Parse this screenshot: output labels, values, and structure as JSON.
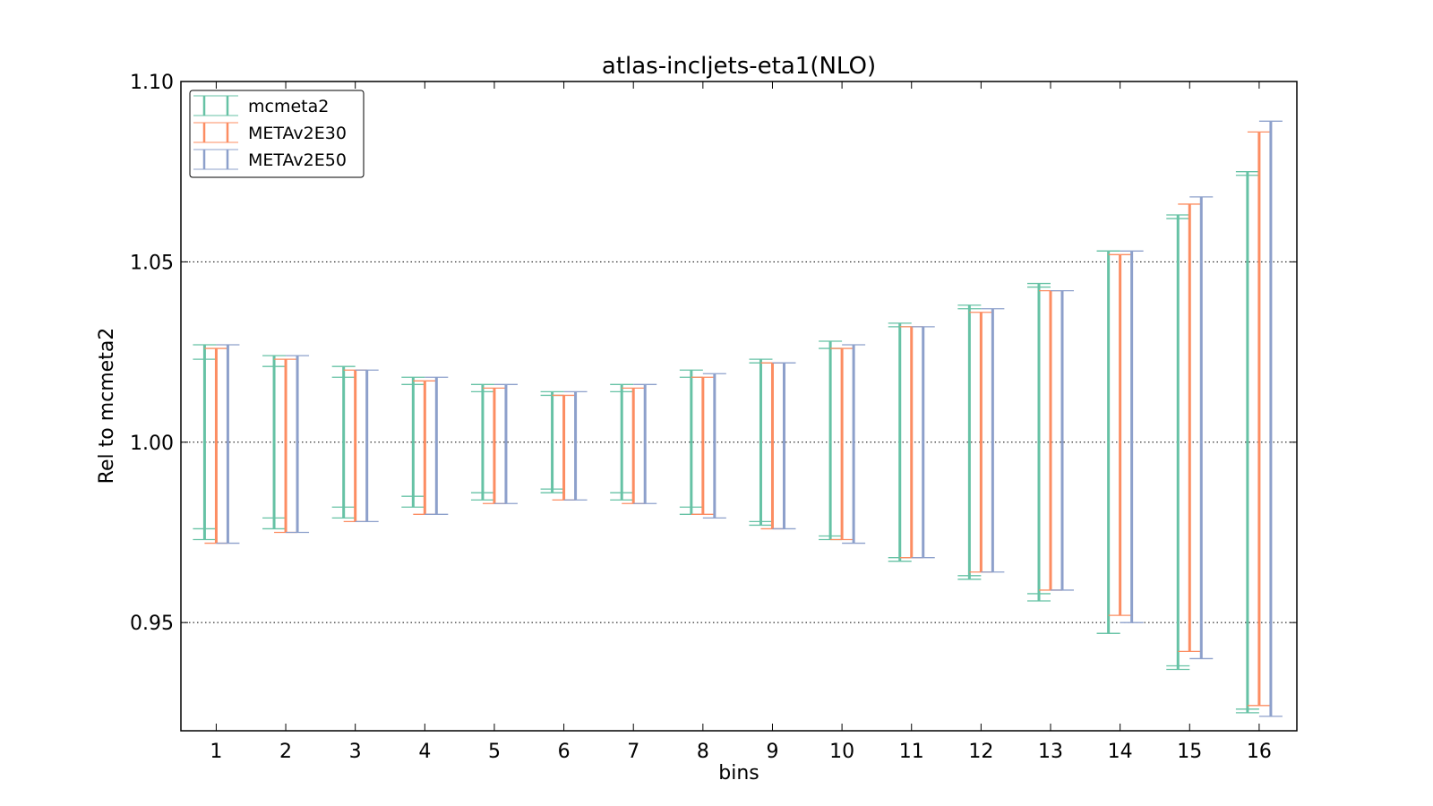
{
  "chart_data": {
    "type": "errorbar",
    "title": "atlas-incljets-eta1(NLO)",
    "xlabel": "bins",
    "ylabel": "Rel to mcmeta2",
    "ylim": [
      0.92,
      1.1
    ],
    "yticks": [
      "0.95",
      "1.00",
      "1.05",
      "1.10"
    ],
    "ytick_values": [
      0.95,
      1.0,
      1.05,
      1.1
    ],
    "grid": "horizontal dotted",
    "legend_position": "top-left",
    "categories": [
      "1",
      "2",
      "3",
      "4",
      "5",
      "6",
      "7",
      "8",
      "9",
      "10",
      "11",
      "12",
      "13",
      "14",
      "15",
      "16"
    ],
    "series": [
      {
        "name": "mcmeta2",
        "color": "#66c2a5",
        "upper": [
          1.027,
          1.024,
          1.021,
          1.018,
          1.016,
          1.014,
          1.016,
          1.02,
          1.023,
          1.028,
          1.033,
          1.038,
          1.044,
          1.053,
          1.063,
          1.075
        ],
        "lower": [
          0.973,
          0.976,
          0.979,
          0.982,
          0.984,
          0.986,
          0.984,
          0.98,
          0.977,
          0.973,
          0.967,
          0.962,
          0.956,
          0.947,
          0.937,
          0.925
        ],
        "inner_upper": [
          1.023,
          1.021,
          1.018,
          1.016,
          1.014,
          1.013,
          1.014,
          1.018,
          1.022,
          1.026,
          1.032,
          1.037,
          1.043,
          1.053,
          1.062,
          1.074
        ],
        "inner_lower": [
          0.976,
          0.979,
          0.982,
          0.985,
          0.986,
          0.987,
          0.986,
          0.982,
          0.978,
          0.974,
          0.968,
          0.963,
          0.958,
          0.947,
          0.938,
          0.926
        ]
      },
      {
        "name": "METAv2E30",
        "color": "#fc8d62",
        "upper": [
          1.026,
          1.023,
          1.02,
          1.017,
          1.015,
          1.013,
          1.015,
          1.018,
          1.022,
          1.026,
          1.032,
          1.036,
          1.042,
          1.052,
          1.066,
          1.086
        ],
        "lower": [
          0.972,
          0.975,
          0.978,
          0.98,
          0.983,
          0.984,
          0.983,
          0.98,
          0.976,
          0.973,
          0.968,
          0.964,
          0.959,
          0.952,
          0.942,
          0.927
        ]
      },
      {
        "name": "METAv2E50",
        "color": "#8da0cb",
        "upper": [
          1.027,
          1.024,
          1.02,
          1.018,
          1.016,
          1.014,
          1.016,
          1.019,
          1.022,
          1.027,
          1.032,
          1.037,
          1.042,
          1.053,
          1.068,
          1.089
        ],
        "lower": [
          0.972,
          0.975,
          0.978,
          0.98,
          0.983,
          0.984,
          0.983,
          0.979,
          0.976,
          0.972,
          0.968,
          0.964,
          0.959,
          0.95,
          0.94,
          0.924
        ]
      }
    ]
  }
}
